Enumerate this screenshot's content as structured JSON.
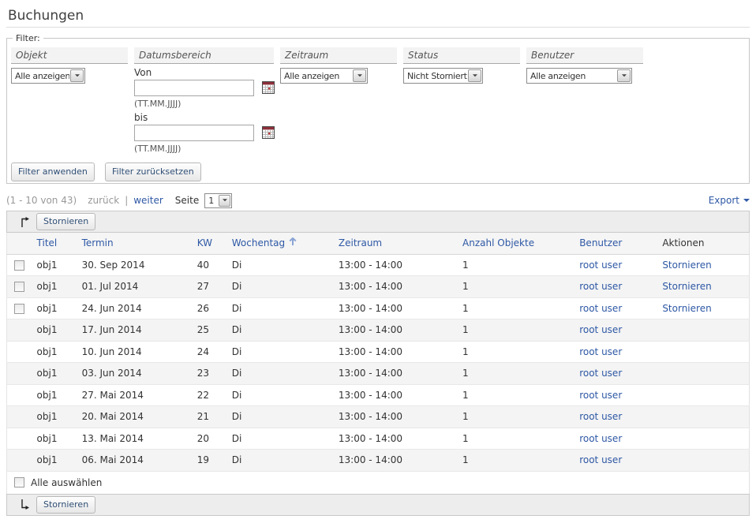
{
  "title": "Buchungen",
  "filter": {
    "legend": "Filter:",
    "objekt": {
      "label": "Objekt",
      "value": "Alle anzeigen"
    },
    "datumsbereich": {
      "label": "Datumsbereich",
      "von_label": "Von",
      "bis_label": "bis",
      "von_value": "",
      "bis_value": "",
      "format_hint": "(TT.MM.JJJJ)"
    },
    "zeitraum": {
      "label": "Zeitraum",
      "value": "Alle anzeigen"
    },
    "status": {
      "label": "Status",
      "value": "Nicht Storniert"
    },
    "benutzer": {
      "label": "Benutzer",
      "value": "Alle anzeigen"
    },
    "apply_label": "Filter anwenden",
    "reset_label": "Filter zurücksetzen"
  },
  "pagination": {
    "range_text": "(1 - 10 von 43)",
    "prev_label": "zurück",
    "separator": "|",
    "next_label": "weiter",
    "page_label": "Seite",
    "page_value": "1",
    "export_label": "Export"
  },
  "toolbar": {
    "stornieren_label": "Stornieren"
  },
  "table": {
    "headers": {
      "titel": "Titel",
      "termin": "Termin",
      "kw": "KW",
      "wochentag": "Wochentag",
      "zeitraum": "Zeitraum",
      "anzahl": "Anzahl Objekte",
      "benutzer": "Benutzer",
      "aktionen": "Aktionen"
    },
    "select_all_label": "Alle auswählen",
    "rows": [
      {
        "titel": "obj1",
        "termin": "30. Sep 2014",
        "kw": "40",
        "wochentag": "Di",
        "zeitraum": "13:00 - 14:00",
        "anzahl": "1",
        "benutzer": "root user",
        "aktion": "Stornieren",
        "selectable": true
      },
      {
        "titel": "obj1",
        "termin": "01. Jul 2014",
        "kw": "27",
        "wochentag": "Di",
        "zeitraum": "13:00 - 14:00",
        "anzahl": "1",
        "benutzer": "root user",
        "aktion": "Stornieren",
        "selectable": true
      },
      {
        "titel": "obj1",
        "termin": "24. Jun 2014",
        "kw": "26",
        "wochentag": "Di",
        "zeitraum": "13:00 - 14:00",
        "anzahl": "1",
        "benutzer": "root user",
        "aktion": "Stornieren",
        "selectable": true
      },
      {
        "titel": "obj1",
        "termin": "17. Jun 2014",
        "kw": "25",
        "wochentag": "Di",
        "zeitraum": "13:00 - 14:00",
        "anzahl": "1",
        "benutzer": "root user",
        "aktion": null,
        "selectable": false
      },
      {
        "titel": "obj1",
        "termin": "10. Jun 2014",
        "kw": "24",
        "wochentag": "Di",
        "zeitraum": "13:00 - 14:00",
        "anzahl": "1",
        "benutzer": "root user",
        "aktion": null,
        "selectable": false
      },
      {
        "titel": "obj1",
        "termin": "03. Jun 2014",
        "kw": "23",
        "wochentag": "Di",
        "zeitraum": "13:00 - 14:00",
        "anzahl": "1",
        "benutzer": "root user",
        "aktion": null,
        "selectable": false
      },
      {
        "titel": "obj1",
        "termin": "27. Mai 2014",
        "kw": "22",
        "wochentag": "Di",
        "zeitraum": "13:00 - 14:00",
        "anzahl": "1",
        "benutzer": "root user",
        "aktion": null,
        "selectable": false
      },
      {
        "titel": "obj1",
        "termin": "20. Mai 2014",
        "kw": "21",
        "wochentag": "Di",
        "zeitraum": "13:00 - 14:00",
        "anzahl": "1",
        "benutzer": "root user",
        "aktion": null,
        "selectable": false
      },
      {
        "titel": "obj1",
        "termin": "13. Mai 2014",
        "kw": "20",
        "wochentag": "Di",
        "zeitraum": "13:00 - 14:00",
        "anzahl": "1",
        "benutzer": "root user",
        "aktion": null,
        "selectable": false
      },
      {
        "titel": "obj1",
        "termin": "06. Mai 2014",
        "kw": "19",
        "wochentag": "Di",
        "zeitraum": "13:00 - 14:00",
        "anzahl": "1",
        "benutzer": "root user",
        "aktion": null,
        "selectable": false
      }
    ]
  }
}
